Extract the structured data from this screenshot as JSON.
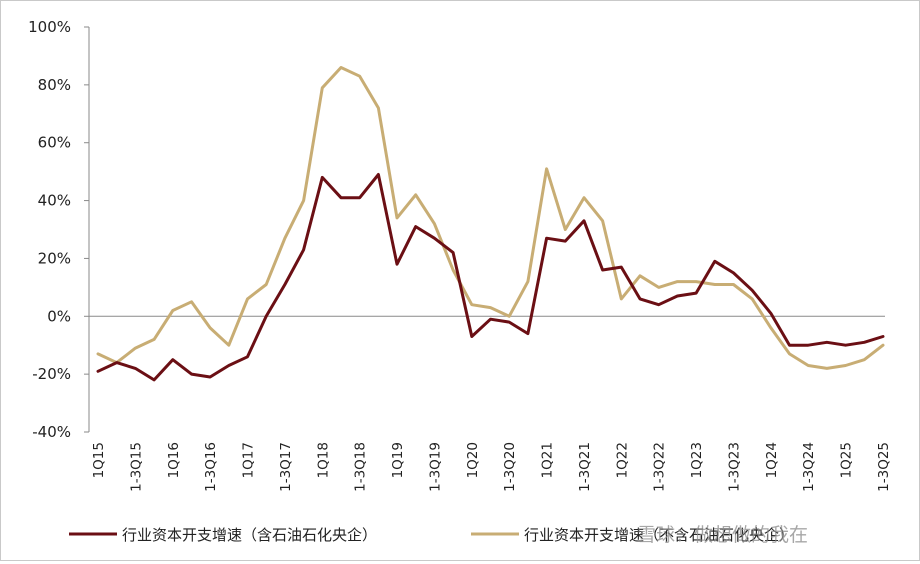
{
  "chart_data": {
    "type": "line",
    "title": "",
    "xlabel": "",
    "ylabel": "",
    "ylim": [
      -40,
      100
    ],
    "yticks": [
      "100%",
      "80%",
      "60%",
      "40%",
      "20%",
      "0%",
      "-20%",
      "-40%"
    ],
    "ytick_values": [
      100,
      80,
      60,
      40,
      20,
      0,
      -20,
      -40
    ],
    "categories": [
      "1Q15",
      "1-2Q15",
      "1-3Q15",
      "1-4Q15",
      "1Q16",
      "1-2Q16",
      "1-3Q16",
      "1-4Q16",
      "1Q17",
      "1-2Q17",
      "1-3Q17",
      "1-4Q17",
      "1Q18",
      "1-2Q18",
      "1-3Q18",
      "1-4Q18",
      "1Q19",
      "1-2Q19",
      "1-3Q19",
      "1-4Q19",
      "1Q20",
      "1-2Q20",
      "1-3Q20",
      "1-4Q20",
      "1Q21",
      "1-2Q21",
      "1-3Q21",
      "1-4Q21",
      "1Q22",
      "1-2Q22",
      "1-3Q22",
      "1-4Q22",
      "1Q23",
      "1-2Q23",
      "1-3Q23",
      "1-4Q23",
      "1Q24",
      "1-2Q24",
      "1-3Q24",
      "1-4Q24",
      "1Q25",
      "1-2Q25",
      "1-3Q25"
    ],
    "tick_labels": [
      "1Q15",
      "1-3Q15",
      "1Q16",
      "1-3Q16",
      "1Q17",
      "1-3Q17",
      "1Q18",
      "1-3Q18",
      "1Q19",
      "1-3Q19",
      "1Q20",
      "1-3Q20",
      "1Q21",
      "1-3Q21",
      "1Q22",
      "1-3Q22",
      "1Q23",
      "1-3Q23",
      "1Q24",
      "1-3Q24",
      "1Q25",
      "1-3Q25"
    ],
    "series": [
      {
        "name": "行业资本开支增速（含石油石化央企）",
        "color": "#6b0f14",
        "values": [
          -19,
          -16,
          -18,
          -22,
          -15,
          -20,
          -21,
          -17,
          -14,
          0,
          11,
          23,
          48,
          41,
          41,
          49,
          18,
          31,
          27,
          22,
          -7,
          -1,
          -2,
          -6,
          27,
          26,
          33,
          16,
          17,
          6,
          4,
          7,
          8,
          19,
          15,
          9,
          1,
          -10,
          -10,
          -9,
          -10,
          -9,
          -7
        ]
      },
      {
        "name": "行业资本开支增速（不含石油石化央企）",
        "color": "#c8ad74",
        "values": [
          -13,
          -16,
          -11,
          -8,
          2,
          5,
          -4,
          -10,
          6,
          11,
          27,
          40,
          79,
          86,
          83,
          72,
          34,
          42,
          32,
          16,
          4,
          3,
          0,
          12,
          51,
          30,
          41,
          33,
          6,
          14,
          10,
          12,
          12,
          11,
          11,
          6,
          -4,
          -13,
          -17,
          -18,
          -17,
          -15,
          -10
        ]
      }
    ],
    "legend": [
      "行业资本开支增速（含石油石化央企）",
      "行业资本开支增速（不含石油石化央企）"
    ],
    "legend_position": "bottom",
    "grid": false
  },
  "watermark": "雪球：做想做的我在",
  "colors": {
    "series1": "#6b0f14",
    "series2": "#c8ad74",
    "axis": "#8a8a8a"
  }
}
